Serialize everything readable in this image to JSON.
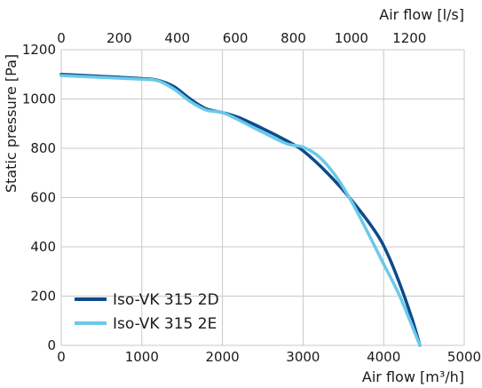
{
  "chart_data": {
    "type": "line",
    "xlabel_bottom": "Air flow [m³/h]",
    "xlabel_top": "Air flow [l/s]",
    "ylabel": "Static pressure [Pa]",
    "xlim_bottom": [
      0,
      5000
    ],
    "xlim_top": [
      0,
      1388.9
    ],
    "ylim": [
      0,
      1200
    ],
    "x_ticks_bottom": [
      "0",
      "1000",
      "2000",
      "3000",
      "4000",
      "5000"
    ],
    "x_ticks_top": [
      "0",
      "200",
      "400",
      "600",
      "800",
      "1000",
      "1200"
    ],
    "y_ticks": [
      "0",
      "200",
      "400",
      "600",
      "800",
      "1000",
      "1200"
    ],
    "grid": true,
    "legend_position": "bottom-left",
    "series": [
      {
        "name": "Iso-VK 315 2D",
        "color": "#0d4a8c",
        "x": [
          0,
          500,
          1000,
          1200,
          1400,
          1600,
          1800,
          2000,
          2200,
          2500,
          2800,
          3000,
          3300,
          3600,
          3900,
          4050,
          4200,
          4350,
          4450
        ],
        "y": [
          1100,
          1092,
          1083,
          1076,
          1050,
          1000,
          960,
          945,
          925,
          880,
          830,
          790,
          700,
          590,
          460,
          370,
          250,
          110,
          0
        ]
      },
      {
        "name": "Iso-VK 315 2E",
        "color": "#6ac9e8",
        "x": [
          0,
          500,
          1000,
          1200,
          1400,
          1600,
          1800,
          2000,
          2200,
          2500,
          2800,
          3000,
          3200,
          3400,
          3600,
          3800,
          4000,
          4200,
          4450
        ],
        "y": [
          1095,
          1088,
          1080,
          1074,
          1040,
          990,
          955,
          945,
          915,
          865,
          818,
          805,
          765,
          690,
          585,
          460,
          330,
          200,
          0
        ]
      }
    ]
  }
}
